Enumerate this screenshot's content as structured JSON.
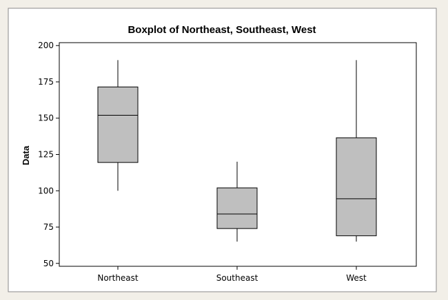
{
  "chart_data": {
    "type": "boxplot",
    "title": "Boxplot of Northeast, Southeast, West",
    "xlabel": "",
    "ylabel": "Data",
    "ylim": [
      48,
      202
    ],
    "yticks": [
      50,
      75,
      100,
      125,
      150,
      175,
      200
    ],
    "ytick_labels": [
      "50",
      "75",
      "100",
      "125",
      "150",
      "175",
      "200"
    ],
    "grid": false,
    "categories": [
      "Northeast",
      "Southeast",
      "West"
    ],
    "boxes": [
      {
        "min": 100,
        "q1": 119.5,
        "median": 152,
        "q3": 171.5,
        "max": 190
      },
      {
        "min": 65,
        "q1": 74,
        "median": 84,
        "q3": 102,
        "max": 120
      },
      {
        "min": 65,
        "q1": 69,
        "median": 94.5,
        "q3": 136.5,
        "max": 190
      }
    ],
    "colors": {
      "box_fill": "#bfbfbf",
      "outline": "#000000",
      "page_bg": "#f2efe8",
      "figure_bg": "#ffffff"
    }
  }
}
